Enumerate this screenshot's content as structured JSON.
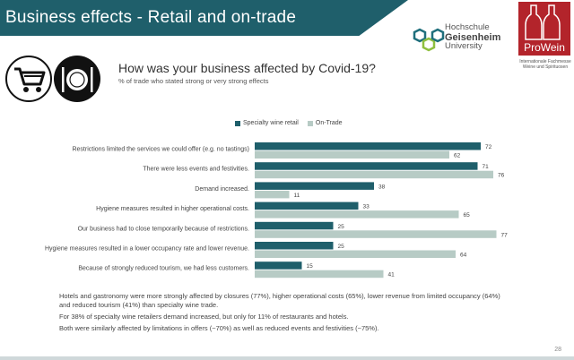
{
  "header": {
    "title": "Business effects - Retail and on-trade",
    "logo_left_line1": "Hochschule",
    "logo_left_line2": "Geisenheim",
    "logo_left_line3": "University",
    "logo_right_name": "ProWein",
    "logo_right_sub": "Internationale Fachmesse Weine und Spirituosen"
  },
  "icons": [
    "shopping-cart-icon",
    "plate-cutlery-icon"
  ],
  "question": "How was your business affected by Covid-19?",
  "subtitle": "% of  trade who stated strong or very strong effects",
  "colors": {
    "primary": "#1f5f6b",
    "secondary": "#b7cbc5",
    "banner": "#1f5f6b",
    "prowein": "#b3242b"
  },
  "chart_data": {
    "type": "bar",
    "orientation": "horizontal",
    "categories": [
      "Restrictions limited the services we could offer (e.g. no tastings)",
      "There were less events and festivities.",
      "Demand increased.",
      "Hygiene measures resulted in higher operational costs.",
      "Our business had to close temporarily because of restrictions.",
      "Hygiene measures resulted in a lower occupancy rate and lower revenue.",
      "Because of strongly reduced tourism, we had less customers."
    ],
    "series": [
      {
        "name": "Specialty wine retail",
        "color": "#1f5f6b",
        "values": [
          72,
          71,
          38,
          33,
          25,
          25,
          15
        ]
      },
      {
        "name": "On-Trade",
        "color": "#b7cbc5",
        "values": [
          62,
          76,
          11,
          65,
          77,
          64,
          41
        ]
      }
    ],
    "xlim": [
      0,
      80
    ],
    "legend_position": "top"
  },
  "notes": [
    "Hotels and gastronomy were more strongly affected by closures (77%), higher operational costs (65%), lower revenue from limited occupancy (64%)  and reduced tourism (41%) than specialty wine trade.",
    "For 38% of specialty wine retailers demand increased, but only for 11% of restaurants and hotels.",
    "Both were similarly affected by limitations in offers (~70%)  as well as reduced events and festivities (~75%)."
  ],
  "page_number": "28"
}
